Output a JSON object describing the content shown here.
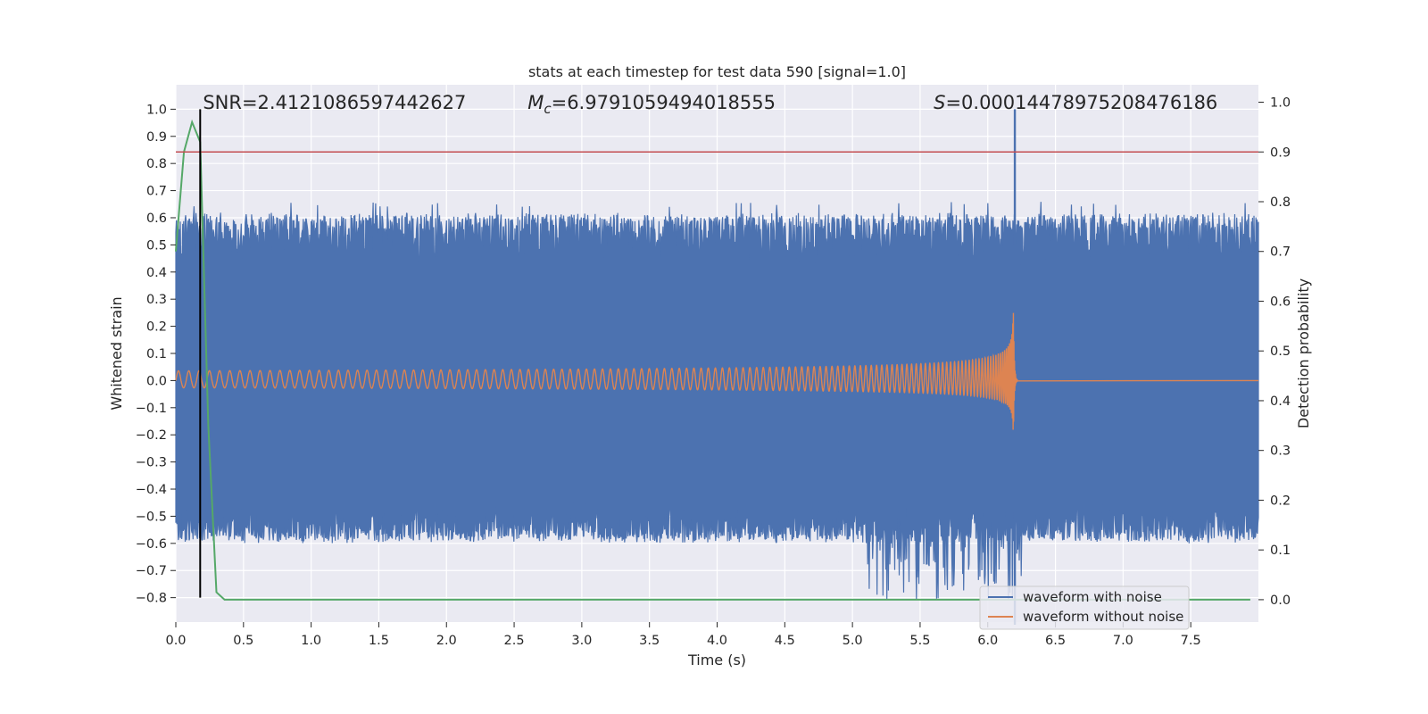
{
  "chart_data": {
    "type": "line",
    "title": "stats at each timestep for test data 590 [signal=1.0]",
    "xlabel": "Time (s)",
    "ylabel_left": "Whitened strain",
    "ylabel_right": "Detection probability",
    "xlim": [
      0.0,
      8.0
    ],
    "ylim_left": [
      -0.89,
      1.09
    ],
    "ylim_right": [
      -0.045,
      1.035
    ],
    "x_ticks": [
      "0.0",
      "0.5",
      "1.0",
      "1.5",
      "2.0",
      "2.5",
      "3.0",
      "3.5",
      "4.0",
      "4.5",
      "5.0",
      "5.5",
      "6.0",
      "6.5",
      "7.0",
      "7.5"
    ],
    "y_ticks_left": [
      "1.0",
      "0.9",
      "0.8",
      "0.7",
      "0.6",
      "0.5",
      "0.4",
      "0.3",
      "0.2",
      "0.1",
      "0.0",
      "−0.1",
      "−0.2",
      "−0.3",
      "−0.4",
      "−0.5",
      "−0.6",
      "−0.7",
      "−0.8"
    ],
    "y_ticks_right": [
      "1.0",
      "0.9",
      "0.8",
      "0.7",
      "0.6",
      "0.5",
      "0.4",
      "0.3",
      "0.2",
      "0.1",
      "0.0"
    ],
    "grid": true,
    "legend_placement": "lower-right",
    "annotations": {
      "snr": "SNR=2.4121086597442627",
      "mc_symbol": "M",
      "mc_subscript": "c",
      "mc_value": "=6.9791059494018555",
      "s_symbol": "S",
      "s_value": "=0.00014478975208476186"
    },
    "series": [
      {
        "name": "waveform with noise",
        "color": "#4c72b0",
        "axis": "left",
        "envelope_typical": [
          -0.6,
          0.62
        ],
        "envelope_extreme": [
          -0.81,
          0.66
        ],
        "spike": {
          "x": 6.2,
          "low": -0.9,
          "high": 1.0
        }
      },
      {
        "name": "waveform without noise",
        "color": "#dd8452",
        "axis": "left",
        "chirp_start_amplitude": 0.035,
        "peak": {
          "x": 6.19,
          "high": 0.39,
          "low": -0.29
        },
        "end_time": 6.22
      },
      {
        "color": "#55a868",
        "axis": "right",
        "x": [
          0.0,
          0.06,
          0.12,
          0.18,
          0.24,
          0.3,
          0.36,
          0.42,
          1.0,
          2.0,
          3.0,
          4.0,
          5.0,
          6.0,
          7.0,
          7.94
        ],
        "values": [
          0.7,
          0.9,
          0.96,
          0.92,
          0.35,
          0.015,
          0.0,
          0.0,
          0.0,
          0.0,
          0.0,
          0.0,
          0.0,
          0.0,
          0.0,
          0.0
        ]
      },
      {
        "color": "#c44e52",
        "axis": "right",
        "type": "hline",
        "y": 0.9
      },
      {
        "color": "#000000",
        "axis": "left",
        "type": "vline",
        "x": 0.18,
        "y_range": [
          -0.8,
          1.0
        ]
      }
    ]
  }
}
